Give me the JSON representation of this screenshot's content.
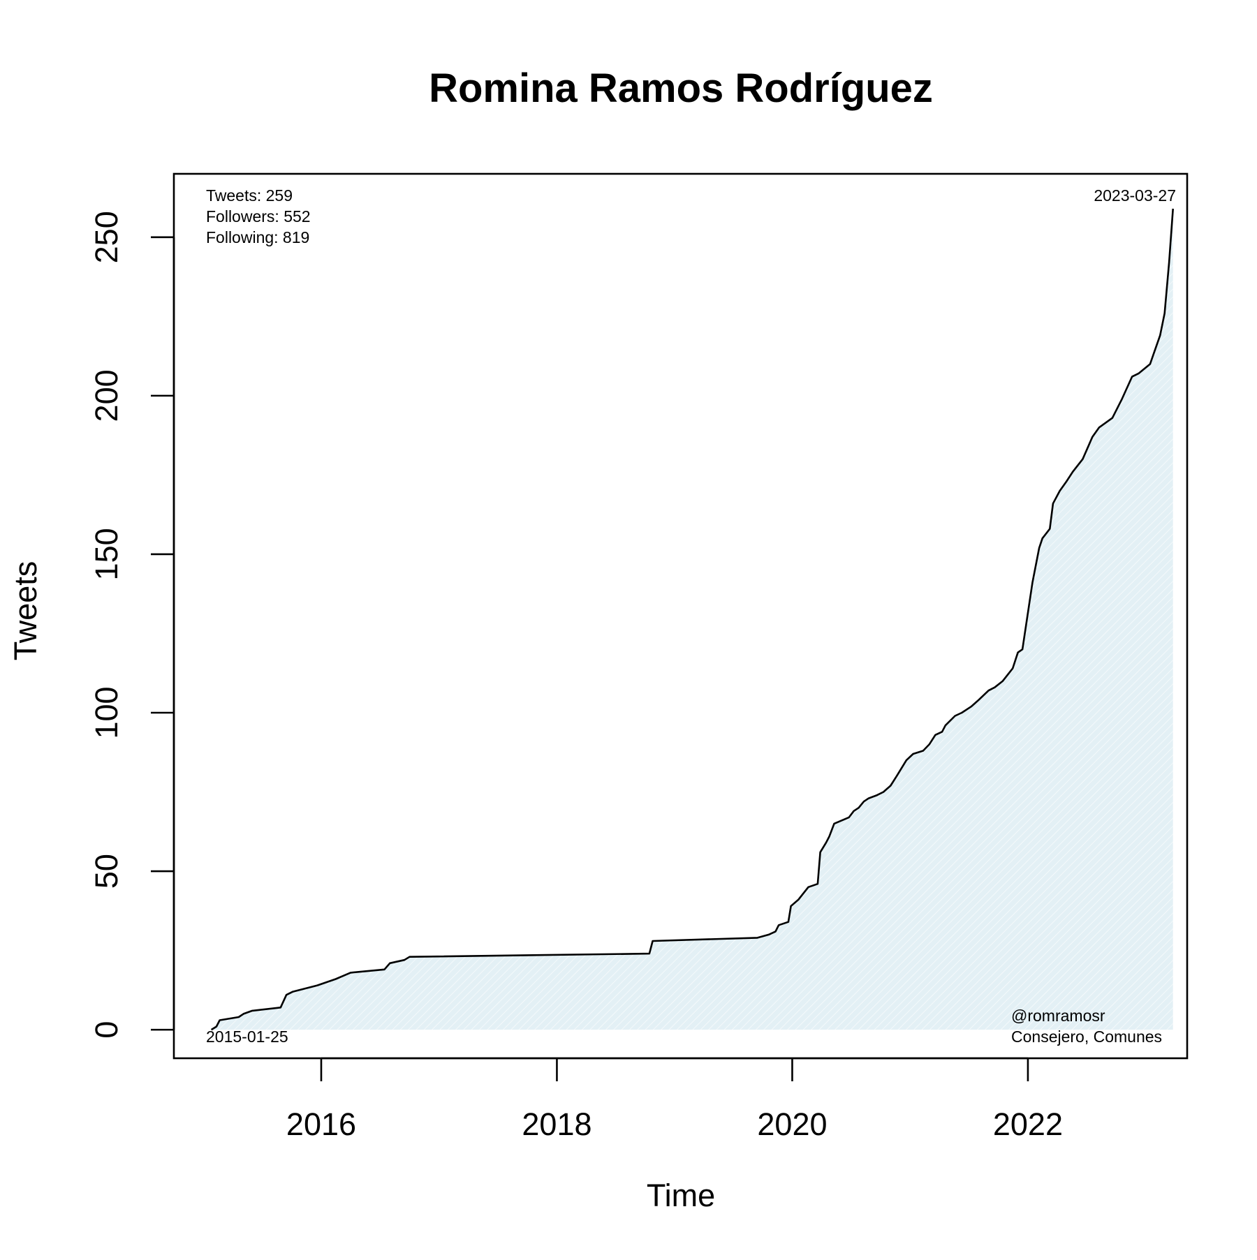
{
  "chart_data": {
    "type": "area",
    "title": "Romina Ramos Rodríguez",
    "xlabel": "Time",
    "ylabel": "Tweets",
    "x_scale": "date",
    "xlim": [
      "2014-10-01",
      "2023-05-10"
    ],
    "ylim": [
      -9,
      270
    ],
    "x_ticks": [
      {
        "value": "2016-01-01",
        "label": "2016"
      },
      {
        "value": "2018-01-01",
        "label": "2018"
      },
      {
        "value": "2020-01-01",
        "label": "2020"
      },
      {
        "value": "2022-01-01",
        "label": "2022"
      }
    ],
    "y_ticks": [
      {
        "value": 0,
        "label": "0"
      },
      {
        "value": 50,
        "label": "50"
      },
      {
        "value": 100,
        "label": "100"
      },
      {
        "value": 150,
        "label": "150"
      },
      {
        "value": 200,
        "label": "200"
      },
      {
        "value": 250,
        "label": "250"
      }
    ],
    "grid": false,
    "fill_color": "#e3f0f5",
    "line_color": "#000000",
    "stats": [
      "Tweets: 259",
      "Followers: 552",
      "Following: 819"
    ],
    "start_label": "2015-01-25",
    "end_label": "2023-03-27",
    "footer": [
      "@romramosr",
      "Consejero, Comunes"
    ],
    "series": [
      {
        "x": [
          "2015-01-25",
          "2015-02-10",
          "2015-02-20",
          "2015-04-20",
          "2015-05-05",
          "2015-06-01",
          "2015-08-28",
          "2015-09-15",
          "2015-10-05",
          "2015-12-20",
          "2016-02-15",
          "2016-04-01",
          "2016-07-15",
          "2016-08-01",
          "2016-09-15",
          "2016-10-01",
          "2018-10-15",
          "2018-10-25",
          "2019-09-15",
          "2019-10-20",
          "2019-11-10",
          "2019-11-20",
          "2019-12-20",
          "2019-12-28",
          "2020-01-20",
          "2020-02-20",
          "2020-03-20",
          "2020-03-28",
          "2020-04-15",
          "2020-04-25",
          "2020-05-10",
          "2020-06-25",
          "2020-07-10",
          "2020-07-25",
          "2020-08-10",
          "2020-08-25",
          "2020-09-20",
          "2020-10-10",
          "2020-11-01",
          "2020-11-20",
          "2020-12-20",
          "2021-01-10",
          "2021-02-10",
          "2021-03-01",
          "2021-03-20",
          "2021-04-10",
          "2021-04-20",
          "2021-05-20",
          "2021-06-10",
          "2021-07-10",
          "2021-08-01",
          "2021-09-01",
          "2021-09-20",
          "2021-10-15",
          "2021-11-15",
          "2021-12-01",
          "2021-12-15",
          "2022-01-15",
          "2022-02-05",
          "2022-02-15",
          "2022-03-10",
          "2022-03-20",
          "2022-04-10",
          "2022-05-01",
          "2022-05-20",
          "2022-06-20",
          "2022-07-20",
          "2022-08-10",
          "2022-09-20",
          "2022-10-20",
          "2022-11-20",
          "2022-12-10",
          "2023-01-15",
          "2023-02-01",
          "2023-02-15",
          "2023-03-01",
          "2023-03-15",
          "2023-03-27"
        ],
        "y": [
          0,
          1,
          3,
          4,
          5,
          6,
          7,
          11,
          12,
          14,
          16,
          18,
          19,
          21,
          22,
          23,
          24,
          28,
          29,
          30,
          31,
          33,
          34,
          39,
          41,
          45,
          46,
          56,
          59,
          61,
          65,
          67,
          69,
          70,
          72,
          73,
          74,
          75,
          77,
          80,
          85,
          87,
          88,
          90,
          93,
          94,
          96,
          99,
          100,
          102,
          104,
          107,
          108,
          110,
          114,
          119,
          120,
          141,
          152,
          155,
          158,
          166,
          170,
          173,
          176,
          180,
          187,
          190,
          193,
          199,
          206,
          207,
          210,
          215,
          219,
          226,
          242,
          259
        ]
      }
    ]
  }
}
